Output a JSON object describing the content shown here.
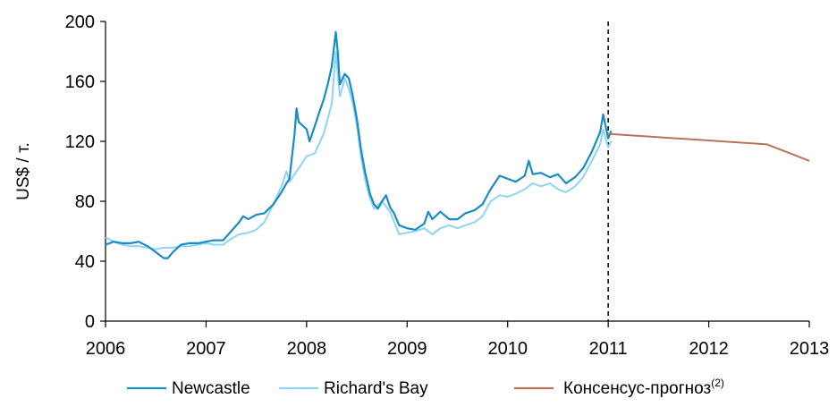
{
  "chart_data": {
    "type": "line",
    "ylabel": "US$ / т.",
    "xlabel": "",
    "title": "",
    "x_ticks": [
      "2006",
      "2007",
      "2008",
      "2009",
      "2010",
      "2011",
      "2012",
      "2013"
    ],
    "y_ticks": [
      0,
      40,
      80,
      120,
      160,
      200
    ],
    "xlim": [
      2006,
      2013
    ],
    "ylim": [
      0,
      200
    ],
    "forecast_divider_x": 2011,
    "grid": false,
    "legend_position": "bottom",
    "series": [
      {
        "name": "Newcastle",
        "color": "#1a8cc4",
        "points": [
          [
            2006.0,
            51
          ],
          [
            2006.08,
            53
          ],
          [
            2006.17,
            52
          ],
          [
            2006.25,
            52
          ],
          [
            2006.33,
            53
          ],
          [
            2006.42,
            50
          ],
          [
            2006.5,
            46
          ],
          [
            2006.58,
            42
          ],
          [
            2006.62,
            42
          ],
          [
            2006.67,
            46
          ],
          [
            2006.75,
            51
          ],
          [
            2006.83,
            52
          ],
          [
            2006.92,
            52
          ],
          [
            2007.0,
            53
          ],
          [
            2007.08,
            54
          ],
          [
            2007.17,
            54
          ],
          [
            2007.25,
            60
          ],
          [
            2007.33,
            66
          ],
          [
            2007.37,
            70
          ],
          [
            2007.42,
            68
          ],
          [
            2007.5,
            71
          ],
          [
            2007.58,
            72
          ],
          [
            2007.67,
            78
          ],
          [
            2007.75,
            86
          ],
          [
            2007.8,
            92
          ],
          [
            2007.83,
            95
          ],
          [
            2007.88,
            125
          ],
          [
            2007.9,
            142
          ],
          [
            2007.92,
            133
          ],
          [
            2008.0,
            128
          ],
          [
            2008.03,
            120
          ],
          [
            2008.08,
            130
          ],
          [
            2008.12,
            138
          ],
          [
            2008.17,
            148
          ],
          [
            2008.21,
            158
          ],
          [
            2008.25,
            170
          ],
          [
            2008.29,
            193
          ],
          [
            2008.31,
            180
          ],
          [
            2008.33,
            158
          ],
          [
            2008.38,
            165
          ],
          [
            2008.42,
            162
          ],
          [
            2008.46,
            150
          ],
          [
            2008.5,
            135
          ],
          [
            2008.54,
            115
          ],
          [
            2008.58,
            100
          ],
          [
            2008.63,
            85
          ],
          [
            2008.67,
            78
          ],
          [
            2008.71,
            75
          ],
          [
            2008.75,
            80
          ],
          [
            2008.79,
            84
          ],
          [
            2008.83,
            76
          ],
          [
            2008.87,
            72
          ],
          [
            2008.92,
            64
          ],
          [
            2009.0,
            62
          ],
          [
            2009.08,
            61
          ],
          [
            2009.17,
            65
          ],
          [
            2009.21,
            73
          ],
          [
            2009.25,
            68
          ],
          [
            2009.33,
            73
          ],
          [
            2009.42,
            68
          ],
          [
            2009.5,
            68
          ],
          [
            2009.58,
            72
          ],
          [
            2009.67,
            74
          ],
          [
            2009.75,
            78
          ],
          [
            2009.83,
            88
          ],
          [
            2009.92,
            97
          ],
          [
            2010.0,
            95
          ],
          [
            2010.08,
            93
          ],
          [
            2010.17,
            97
          ],
          [
            2010.21,
            107
          ],
          [
            2010.25,
            98
          ],
          [
            2010.33,
            99
          ],
          [
            2010.42,
            96
          ],
          [
            2010.5,
            98
          ],
          [
            2010.58,
            92
          ],
          [
            2010.67,
            96
          ],
          [
            2010.75,
            102
          ],
          [
            2010.83,
            112
          ],
          [
            2010.92,
            126
          ],
          [
            2010.95,
            138
          ],
          [
            2011.0,
            122
          ],
          [
            2011.03,
            127
          ]
        ]
      },
      {
        "name": "Richard's Bay",
        "color": "#8fd3f5",
        "points": [
          [
            2006.0,
            56
          ],
          [
            2006.08,
            53
          ],
          [
            2006.17,
            51
          ],
          [
            2006.25,
            50
          ],
          [
            2006.33,
            50
          ],
          [
            2006.42,
            49
          ],
          [
            2006.5,
            48
          ],
          [
            2006.58,
            49
          ],
          [
            2006.67,
            49
          ],
          [
            2006.75,
            50
          ],
          [
            2006.83,
            50
          ],
          [
            2006.92,
            51
          ],
          [
            2007.0,
            52
          ],
          [
            2007.08,
            51
          ],
          [
            2007.17,
            51
          ],
          [
            2007.25,
            55
          ],
          [
            2007.33,
            58
          ],
          [
            2007.42,
            59
          ],
          [
            2007.5,
            61
          ],
          [
            2007.58,
            66
          ],
          [
            2007.67,
            78
          ],
          [
            2007.75,
            90
          ],
          [
            2007.8,
            100
          ],
          [
            2007.83,
            93
          ],
          [
            2007.92,
            102
          ],
          [
            2008.0,
            110
          ],
          [
            2008.08,
            112
          ],
          [
            2008.17,
            125
          ],
          [
            2008.25,
            145
          ],
          [
            2008.29,
            180
          ],
          [
            2008.31,
            165
          ],
          [
            2008.33,
            150
          ],
          [
            2008.38,
            162
          ],
          [
            2008.42,
            155
          ],
          [
            2008.46,
            145
          ],
          [
            2008.5,
            130
          ],
          [
            2008.54,
            110
          ],
          [
            2008.58,
            95
          ],
          [
            2008.63,
            82
          ],
          [
            2008.67,
            75
          ],
          [
            2008.75,
            80
          ],
          [
            2008.83,
            73
          ],
          [
            2008.92,
            58
          ],
          [
            2009.0,
            59
          ],
          [
            2009.08,
            60
          ],
          [
            2009.17,
            62
          ],
          [
            2009.25,
            58
          ],
          [
            2009.33,
            62
          ],
          [
            2009.42,
            64
          ],
          [
            2009.5,
            62
          ],
          [
            2009.58,
            64
          ],
          [
            2009.67,
            66
          ],
          [
            2009.75,
            70
          ],
          [
            2009.83,
            80
          ],
          [
            2009.92,
            84
          ],
          [
            2010.0,
            83
          ],
          [
            2010.08,
            85
          ],
          [
            2010.17,
            88
          ],
          [
            2010.25,
            92
          ],
          [
            2010.33,
            90
          ],
          [
            2010.42,
            92
          ],
          [
            2010.5,
            88
          ],
          [
            2010.58,
            86
          ],
          [
            2010.67,
            90
          ],
          [
            2010.75,
            96
          ],
          [
            2010.83,
            106
          ],
          [
            2010.92,
            118
          ],
          [
            2010.95,
            128
          ],
          [
            2011.0,
            116
          ],
          [
            2011.03,
            120
          ]
        ]
      },
      {
        "name": "Консенсус-прогноз",
        "name_sup": "(2)",
        "color": "#b5735a",
        "points": [
          [
            2011.0,
            125
          ],
          [
            2012.58,
            118
          ],
          [
            2013.0,
            107
          ]
        ]
      }
    ]
  }
}
